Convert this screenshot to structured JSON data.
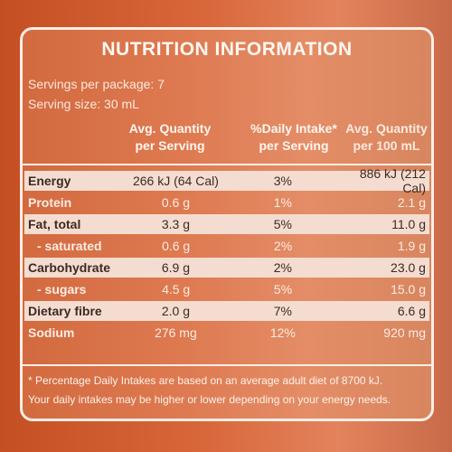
{
  "title": "NUTRITION INFORMATION",
  "servings_per_package": "Servings per package: 7",
  "serving_size": "Serving size: 30 mL",
  "headers": {
    "col1_line1": "Avg. Quantity",
    "col1_line2": "per Serving",
    "col2_line1": "%Daily Intake*",
    "col2_line2": "per Serving",
    "col3_line1": "Avg. Quantity",
    "col3_line2": "per 100 mL"
  },
  "rows": [
    {
      "name": "Energy",
      "per_serving": "266 kJ (64 Cal)",
      "daily_intake": "3%",
      "per_100ml": "886 kJ (212 Cal)"
    },
    {
      "name": "Protein",
      "per_serving": "0.6 g",
      "daily_intake": "1%",
      "per_100ml": "2.1 g"
    },
    {
      "name": "Fat, total",
      "per_serving": "3.3 g",
      "daily_intake": "5%",
      "per_100ml": "11.0 g"
    },
    {
      "name": "- saturated",
      "per_serving": "0.6 g",
      "daily_intake": "2%",
      "per_100ml": "1.9 g"
    },
    {
      "name": "Carbohydrate",
      "per_serving": "6.9 g",
      "daily_intake": "2%",
      "per_100ml": "23.0 g"
    },
    {
      "name": "- sugars",
      "per_serving": "4.5 g",
      "daily_intake": "5%",
      "per_100ml": "15.0 g"
    },
    {
      "name": "Dietary fibre",
      "per_serving": "2.0 g",
      "daily_intake": "7%",
      "per_100ml": "6.6 g"
    },
    {
      "name": "Sodium",
      "per_serving": "276 mg",
      "daily_intake": "12%",
      "per_100ml": "920 mg"
    }
  ],
  "footnote_line1": "* Percentage Daily Intakes are based on an average adult diet of 8700 kJ.",
  "footnote_line2": "Your daily intakes may be higher or lower depending on your energy needs."
}
